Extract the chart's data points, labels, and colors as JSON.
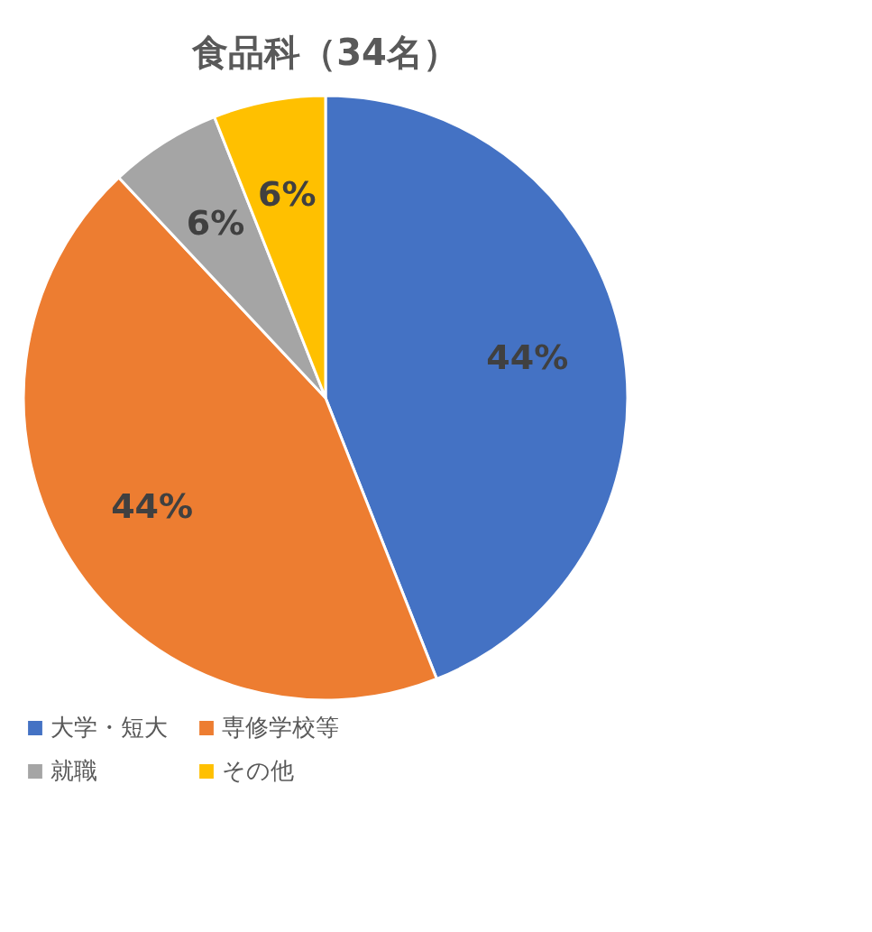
{
  "chart_data": {
    "type": "pie",
    "title": "食品科（34名）",
    "categories": [
      "大学・短大",
      "専修学校等",
      "就職",
      "その他"
    ],
    "values": [
      44,
      44,
      6,
      6
    ],
    "colors": [
      "#4472c4",
      "#ed7d31",
      "#a5a5a5",
      "#ffc000"
    ],
    "value_labels": [
      "44%",
      "44%",
      "6%",
      "6%"
    ],
    "legend": "bottom"
  }
}
